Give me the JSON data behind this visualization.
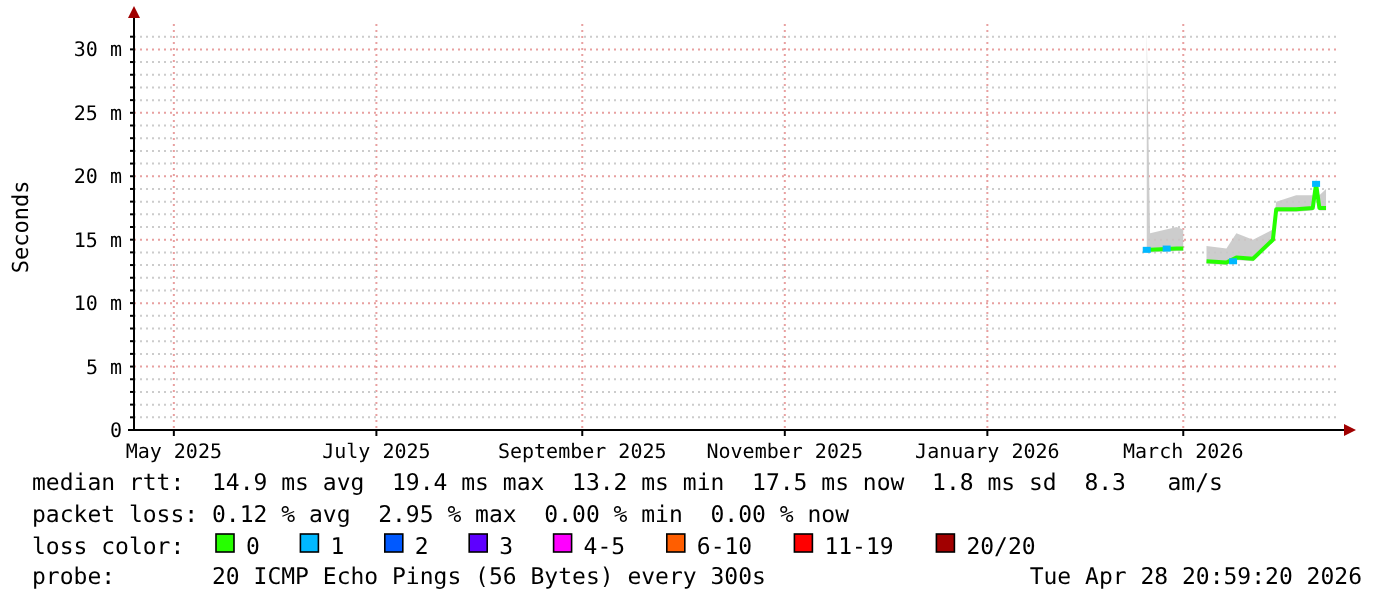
{
  "chart_data": {
    "type": "line",
    "ylabel": "Seconds",
    "legend_title": "loss color:",
    "legend": "bottom",
    "grid": true,
    "xlim": [
      "2025-04-19",
      "2026-04-16"
    ],
    "xticks": [
      {
        "value": "2025-05-01",
        "label": "May 2025"
      },
      {
        "value": "2025-07-01",
        "label": "July 2025"
      },
      {
        "value": "2025-09-01",
        "label": "September 2025"
      },
      {
        "value": "2025-11-01",
        "label": "November 2025"
      },
      {
        "value": "2026-01-01",
        "label": "January 2026"
      },
      {
        "value": "2026-03-01",
        "label": "March 2026"
      }
    ],
    "ylim": [
      0,
      32
    ],
    "yticks": [
      0,
      {
        "value": 1,
        "label": null
      },
      {
        "value": 2,
        "label": null
      },
      {
        "value": 3,
        "label": null
      },
      {
        "value": 4,
        "label": null
      },
      {
        "value": 5,
        "label": "5 m"
      },
      {
        "value": 6,
        "label": null
      },
      {
        "value": 7,
        "label": null
      },
      {
        "value": 8,
        "label": null
      },
      {
        "value": 9,
        "label": null
      },
      {
        "value": 10,
        "label": "10 m"
      },
      {
        "value": 11,
        "label": null
      },
      {
        "value": 12,
        "label": null
      },
      {
        "value": 13,
        "label": null
      },
      {
        "value": 14,
        "label": null
      },
      {
        "value": 15,
        "label": "15 m"
      },
      {
        "value": 16,
        "label": null
      },
      {
        "value": 17,
        "label": null
      },
      {
        "value": 18,
        "label": null
      },
      {
        "value": 19,
        "label": null
      },
      {
        "value": 20,
        "label": "20 m"
      },
      {
        "value": 21,
        "label": null
      },
      {
        "value": 22,
        "label": null
      },
      {
        "value": 23,
        "label": null
      },
      {
        "value": 24,
        "label": null
      },
      {
        "value": 25,
        "label": "25 m"
      },
      {
        "value": 26,
        "label": null
      },
      {
        "value": 27,
        "label": null
      },
      {
        "value": 28,
        "label": null
      },
      {
        "value": 29,
        "label": null
      },
      {
        "value": 30,
        "label": "30 m"
      },
      {
        "value": 31,
        "label": null
      }
    ],
    "series": [
      {
        "name": "0",
        "color": "#26ff00",
        "x": [
          "2026-02-18",
          "2026-02-19",
          "2026-02-27",
          "2026-03-01",
          "2026-03-04",
          "2026-03-08",
          "2026-03-14",
          "2026-03-17",
          "2026-03-22",
          "2026-03-28",
          "2026-03-29",
          "2026-04-04",
          "2026-04-09",
          "2026-04-10",
          "2026-04-11",
          "2026-04-13"
        ],
        "values": [
          14.2,
          14.2,
          14.3,
          14.3,
          null,
          13.3,
          13.2,
          13.6,
          13.5,
          15.0,
          17.4,
          17.4,
          17.5,
          19.4,
          17.5,
          17.5
        ],
        "lower": [
          14.0,
          14.0,
          14.1,
          14.1,
          null,
          13.1,
          13.0,
          13.4,
          13.3,
          14.8,
          17.2,
          17.2,
          17.3,
          19.2,
          17.3,
          17.3
        ],
        "upper": [
          31.5,
          15.5,
          16.0,
          15.8,
          null,
          14.5,
          14.3,
          15.5,
          15.0,
          15.8,
          18.0,
          18.5,
          18.5,
          19.8,
          18.5,
          19.0
        ]
      },
      {
        "name": "1",
        "color": "#00b8ff",
        "type": "scatter",
        "x": [
          "2026-02-18",
          "2026-02-24",
          "2026-03-16",
          "2026-04-10"
        ],
        "values": [
          14.2,
          14.3,
          13.3,
          19.4
        ]
      },
      {
        "name": "2",
        "color": "#0059ff",
        "type": "scatter"
      },
      {
        "name": "3",
        "color": "#5e00ff",
        "type": "scatter"
      },
      {
        "name": "4-5",
        "color": "#ff00ff",
        "type": "scatter"
      },
      {
        "name": "6-10",
        "color": "#ff5e00",
        "type": "scatter"
      },
      {
        "name": "11-19",
        "color": "#ff0000",
        "type": "scatter"
      },
      {
        "name": "20/20",
        "color": "#a10000",
        "type": "scatter"
      }
    ],
    "annotations": [
      "median rtt:  14.9 ms avg  19.4 ms max  13.2 ms min  17.5 ms now  1.8 ms sd  8.3   am/s",
      "packet loss: 0.12 % avg  2.95 % max  0.00 % min  0.00 % now",
      "probe:       20 ICMP Echo Pings (56 Bytes) every 300s",
      "Tue Apr 28 20:59:20 2026"
    ]
  }
}
